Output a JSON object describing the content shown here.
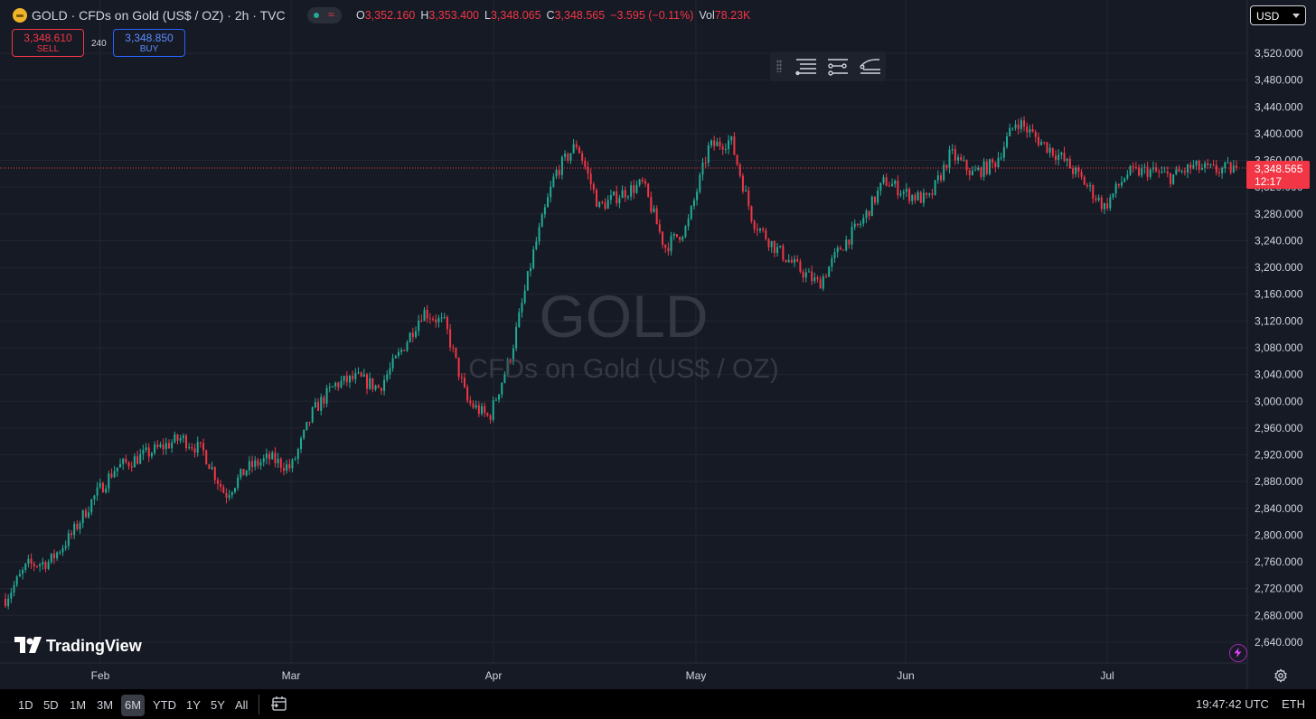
{
  "header": {
    "symbol_title": "GOLD · CFDs on Gold (US$ / OZ) · 2h · TVC",
    "ohlc": {
      "open_label": "O",
      "open": "3,352.160",
      "high_label": "H",
      "high": "3,353.400",
      "low_label": "L",
      "low": "3,348.065",
      "close_label": "C",
      "close": "3,348.565",
      "change": "−3.595 (−0.11%)",
      "vol_label": "Vol",
      "vol": "78.23K"
    },
    "currency": "USD"
  },
  "trade": {
    "sell_price": "3,348.610",
    "sell_label": "SELL",
    "spread": "240",
    "buy_price": "3,348.850",
    "buy_label": "BUY"
  },
  "price_axis": {
    "ticks": [
      "3,520.000",
      "3,480.000",
      "3,440.000",
      "3,400.000",
      "3,360.000",
      "3,320.000",
      "3,280.000",
      "3,240.000",
      "3,200.000",
      "3,160.000",
      "3,120.000",
      "3,080.000",
      "3,040.000",
      "3,000.000",
      "2,960.000",
      "2,920.000",
      "2,880.000",
      "2,840.000",
      "2,800.000",
      "2,760.000",
      "2,720.000",
      "2,680.000",
      "2,640.000"
    ],
    "last_price": "3,348.565",
    "countdown": "12:17"
  },
  "time_axis": {
    "labels": [
      "Feb",
      "Mar",
      "Apr",
      "May",
      "Jun",
      "Jul"
    ]
  },
  "watermark": {
    "symbol": "GOLD",
    "description": "CFDs on Gold (US$ / OZ)"
  },
  "brand": "TradingView",
  "bottom_bar": {
    "ranges": [
      "1D",
      "5D",
      "1M",
      "3M",
      "6M",
      "YTD",
      "1Y",
      "5Y",
      "All"
    ],
    "active_range": "6M",
    "clock": "19:47:42 UTC",
    "session": "ETH"
  },
  "colors": {
    "background": "#161a25",
    "up": "#22ab94",
    "down": "#f23645",
    "grid": "#232631",
    "text": "#d1d4dc"
  },
  "icons": [
    "gold-symbol-icon",
    "market-status-icon",
    "lines-icon",
    "indicator-lines-icon",
    "curve-lines-icon",
    "lightning-icon",
    "settings-icon",
    "compare-icon"
  ],
  "chart_data": {
    "type": "candlestick",
    "symbol": "GOLD",
    "interval": "2h",
    "ylim": [
      2620,
      3540
    ],
    "last": 3348.565,
    "x": [
      "Jan 23",
      "Jan 27",
      "Jan 30",
      "Feb 3",
      "Feb 6",
      "Feb 10",
      "Feb 13",
      "Feb 17",
      "Feb 20",
      "Feb 24",
      "Feb 27",
      "Mar 3",
      "Mar 6",
      "Mar 10",
      "Mar 13",
      "Mar 17",
      "Mar 20",
      "Mar 24",
      "Mar 27",
      "Mar 31",
      "Apr 3",
      "Apr 7",
      "Apr 9",
      "Apr 11",
      "Apr 14",
      "Apr 17",
      "Apr 21",
      "Apr 22",
      "Apr 23",
      "Apr 25",
      "Apr 29",
      "May 2",
      "May 5",
      "May 7",
      "May 9",
      "May 12",
      "May 14",
      "May 15",
      "May 19",
      "May 21",
      "May 23",
      "May 27",
      "May 30",
      "Jun 3",
      "Jun 6",
      "Jun 10",
      "Jun 13",
      "Jun 16",
      "Jun 19",
      "Jun 24",
      "Jun 27",
      "Jul 1",
      "Jul 4",
      "Jul 8",
      "Jul 11",
      "Jul 15",
      "Jul 18"
    ],
    "close": [
      2705,
      2755,
      2760,
      2800,
      2855,
      2900,
      2915,
      2930,
      2945,
      2925,
      2860,
      2900,
      2915,
      2900,
      2985,
      3025,
      3035,
      3020,
      3075,
      3135,
      3115,
      3000,
      2975,
      3070,
      3220,
      3340,
      3385,
      3290,
      3310,
      3325,
      3230,
      3260,
      3380,
      3390,
      3270,
      3230,
      3200,
      3175,
      3230,
      3270,
      3330,
      3310,
      3300,
      3370,
      3340,
      3355,
      3420,
      3390,
      3365,
      3330,
      3290,
      3340,
      3345,
      3335,
      3350,
      3345,
      3348.565
    ]
  }
}
